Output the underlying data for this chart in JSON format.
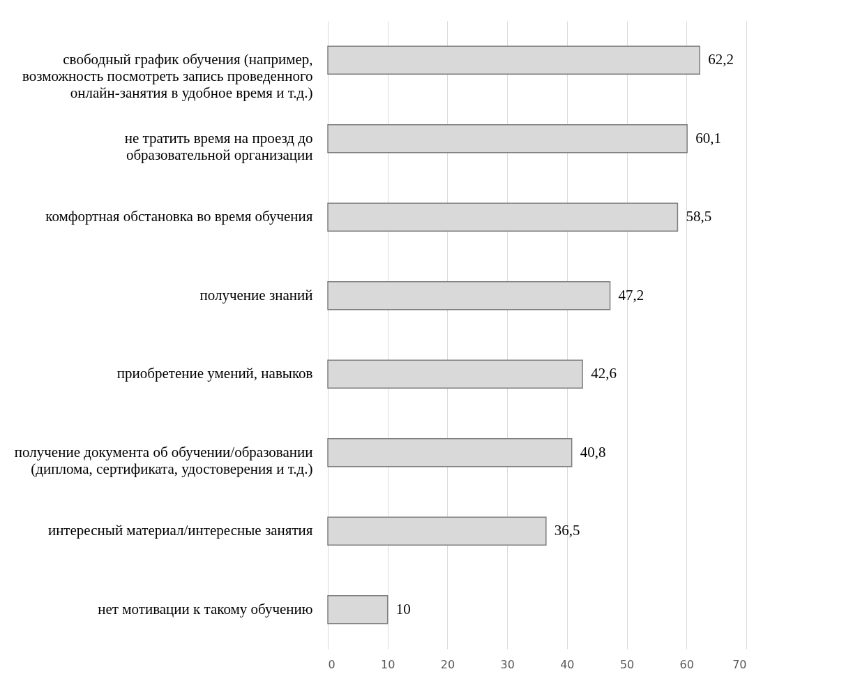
{
  "chart_data": {
    "type": "bar",
    "orientation": "horizontal",
    "categories": [
      "свободный график обучения (например, возможность посмотреть запись проведенного онлайн-занятия в удобное время и т.д.)",
      "не тратить время на проезд до образовательной организации",
      "комфортная обстановка во время обучения",
      "получение знаний",
      "приобретение умений, навыков",
      "получение документа об обучении/образовании (диплома, сертификата, удостоверения и т.д.)",
      "интересный материал/интересные занятия",
      "нет мотивации к такому обучению"
    ],
    "values": [
      62.2,
      60.1,
      58.5,
      47.2,
      42.6,
      40.8,
      36.5,
      10
    ],
    "value_labels": [
      "62,2",
      "60,1",
      "58,5",
      "47,2",
      "42,6",
      "40,8",
      "36,5",
      "10"
    ],
    "color": "#d9d9d9",
    "xlim": [
      0,
      70
    ],
    "xticks": [
      0,
      10,
      20,
      30,
      40,
      50,
      60,
      70
    ],
    "grid": "x"
  }
}
